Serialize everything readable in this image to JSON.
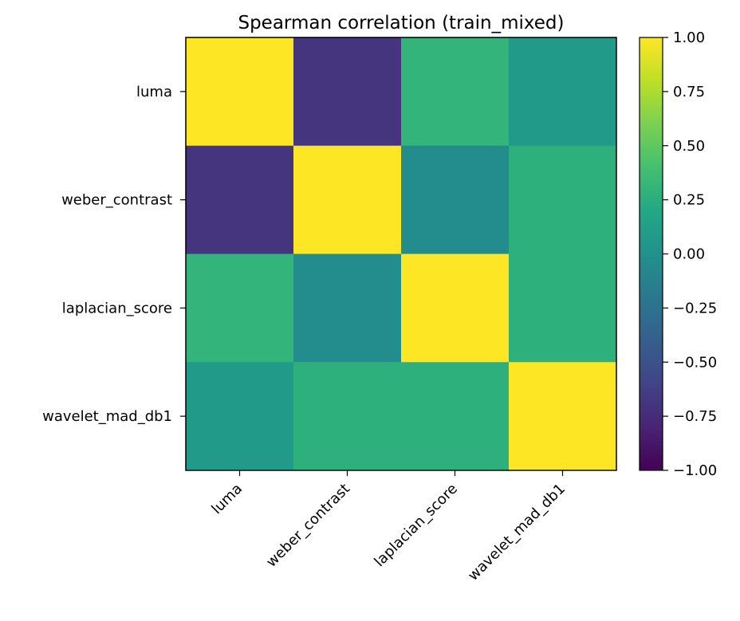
{
  "chart_data": {
    "type": "heatmap",
    "title": "Spearman correlation (train_mixed)",
    "xlabel": "",
    "ylabel": "",
    "x_categories": [
      "luma",
      "weber_contrast",
      "laplacian_score",
      "wavelet_mad_db1"
    ],
    "y_categories": [
      "luma",
      "weber_contrast",
      "laplacian_score",
      "wavelet_mad_db1"
    ],
    "values": [
      [
        1.0,
        -0.7,
        0.3,
        0.08
      ],
      [
        -0.7,
        1.0,
        -0.04,
        0.27
      ],
      [
        0.3,
        -0.04,
        1.0,
        0.27
      ],
      [
        0.08,
        0.27,
        0.27,
        1.0
      ]
    ],
    "colormap": "viridis",
    "vmin": -1.0,
    "vmax": 1.0,
    "colorbar_ticks": [
      -1.0,
      -0.75,
      -0.5,
      -0.25,
      0.0,
      0.25,
      0.5,
      0.75,
      1.0
    ],
    "colorbar_tick_labels": [
      "−1.00",
      "−0.75",
      "−0.50",
      "−0.25",
      "0.00",
      "0.25",
      "0.50",
      "0.75",
      "1.00"
    ],
    "grid": false,
    "colorbar_position": "right"
  }
}
